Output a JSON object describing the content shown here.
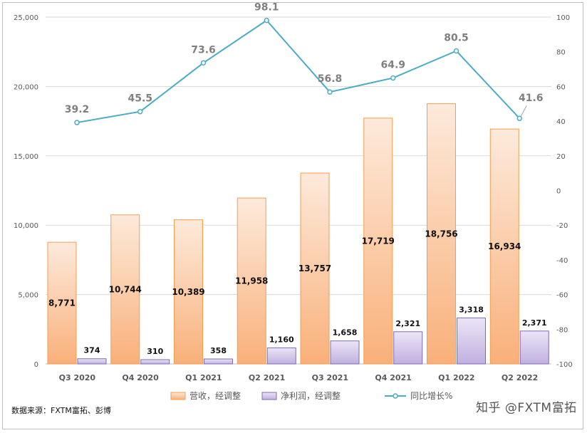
{
  "chart_data": {
    "type": "bar",
    "categories": [
      "Q3 2020",
      "Q4 2020",
      "Q1 2021",
      "Q2 2021",
      "Q3 2021",
      "Q4 2021",
      "Q1 2022",
      "Q2 2022"
    ],
    "series": [
      {
        "name": "营收，经调整",
        "type": "bar",
        "axis": "left",
        "color": "#f7a862",
        "values": [
          8771,
          10744,
          10389,
          11958,
          13757,
          17719,
          18756,
          16934
        ],
        "labels": [
          "8,771",
          "10,744",
          "10,389",
          "11,958",
          "13,757",
          "17,719",
          "18,756",
          "16,934"
        ]
      },
      {
        "name": "净利润，经调整",
        "type": "bar",
        "axis": "left",
        "color": "#b9a7dd",
        "values": [
          374,
          310,
          358,
          1160,
          1658,
          2321,
          3318,
          2371
        ],
        "labels": [
          "374",
          "310",
          "358",
          "1,160",
          "1,658",
          "2,321",
          "3,318",
          "2,371"
        ]
      },
      {
        "name": "同比增长%",
        "type": "line",
        "axis": "right",
        "color": "#4bacc6",
        "values": [
          39.2,
          45.5,
          73.6,
          98.1,
          56.8,
          64.9,
          80.5,
          41.6
        ],
        "labels": [
          "39.2",
          "45.5",
          "73.6",
          "98.1",
          "56.8",
          "64.9",
          "80.5",
          "41.6"
        ]
      }
    ],
    "y_left": {
      "min": 0,
      "max": 25000,
      "ticks": [
        0,
        5000,
        10000,
        15000,
        20000,
        25000
      ],
      "tick_labels": [
        "0",
        "5,000",
        "10,000",
        "15,000",
        "20,000",
        "25,000"
      ]
    },
    "y_right": {
      "min": -100,
      "max": 100,
      "ticks": [
        -100,
        -80,
        -60,
        -40,
        -20,
        0,
        20,
        40,
        60,
        80,
        100
      ],
      "tick_labels": [
        "-100",
        "-80",
        "-60",
        "-40",
        "-20",
        "0",
        "20",
        "40",
        "60",
        "80",
        "100"
      ]
    },
    "grid": true,
    "legend_position": "bottom"
  },
  "source_note": "数据来源：FXTM富拓、彭博",
  "watermark": "知乎 @FXTM富拓"
}
